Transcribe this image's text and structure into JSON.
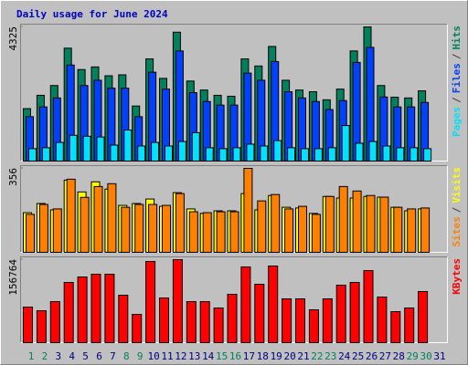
{
  "chart_data": [
    {
      "type": "bar",
      "title": "Daily usage for June 2024",
      "ylim": [
        0,
        4325
      ],
      "yticks": [
        4325
      ],
      "legend_separator": "/",
      "series": [
        {
          "name": "Hits",
          "color": "#00805c",
          "values": [
            1690,
            2120,
            2435,
            3640,
            2950,
            3035,
            2750,
            2780,
            1775,
            3295,
            2665,
            4155,
            2580,
            2290,
            2120,
            2090,
            3295,
            3065,
            3695,
            2605,
            2290,
            2235,
            1975,
            2320,
            3550,
            4325,
            2435,
            2060,
            2035,
            2265,
            null
          ]
        },
        {
          "name": "Files",
          "color": "#0040ff",
          "values": [
            1430,
            1745,
            2035,
            3095,
            2435,
            2605,
            2350,
            2350,
            1430,
            2865,
            2320,
            3550,
            2205,
            1920,
            1805,
            1805,
            2835,
            2605,
            3210,
            2235,
            2035,
            1920,
            1660,
            1950,
            3180,
            3665,
            2065,
            1745,
            1745,
            1890,
            null
          ]
        },
        {
          "name": "Pages",
          "color": "#00e0ff",
          "values": [
            400,
            430,
            600,
            830,
            800,
            775,
            515,
            1000,
            485,
            600,
            485,
            630,
            915,
            430,
            400,
            430,
            545,
            485,
            660,
            430,
            400,
            400,
            430,
            1145,
            575,
            630,
            485,
            430,
            430,
            400,
            null
          ]
        }
      ]
    },
    {
      "type": "bar",
      "ylim": [
        0,
        356
      ],
      "yticks": [
        356
      ],
      "legend_separator": "/",
      "series": [
        {
          "name": "Visits",
          "color": "#ffff00",
          "values": [
            168,
            207,
            180,
            306,
            256,
            299,
            268,
            199,
            207,
            226,
            195,
            253,
            184,
            165,
            176,
            176,
            249,
            180,
            241,
            191,
            188,
            165,
            237,
            230,
            230,
            237,
            234,
            191,
            176,
            184,
            null
          ]
        },
        {
          "name": "Sites",
          "color": "#ff8000",
          "values": [
            161,
            203,
            184,
            310,
            233,
            279,
            291,
            191,
            203,
            203,
            199,
            249,
            172,
            168,
            172,
            172,
            356,
            218,
            245,
            184,
            195,
            161,
            237,
            279,
            260,
            241,
            234,
            191,
            184,
            188,
            null
          ]
        }
      ]
    },
    {
      "type": "bar",
      "ylim": [
        0,
        156764
      ],
      "yticks": [
        156764
      ],
      "categories": [
        "1",
        "2",
        "3",
        "4",
        "5",
        "6",
        "7",
        "8",
        "9",
        "10",
        "11",
        "12",
        "13",
        "14",
        "15",
        "16",
        "17",
        "18",
        "19",
        "20",
        "21",
        "22",
        "23",
        "24",
        "25",
        "26",
        "27",
        "28",
        "29",
        "30",
        "31"
      ],
      "category_colors": [
        "#00805c",
        "#00805c",
        "#000080",
        "#000080",
        "#000080",
        "#000080",
        "#000080",
        "#00805c",
        "#00805c",
        "#000080",
        "#000080",
        "#000080",
        "#000080",
        "#000080",
        "#00805c",
        "#00805c",
        "#000080",
        "#000080",
        "#000080",
        "#000080",
        "#000080",
        "#00805c",
        "#00805c",
        "#000080",
        "#000080",
        "#000080",
        "#000080",
        "#000080",
        "#00805c",
        "#00805c",
        "#000080"
      ],
      "series": [
        {
          "name": "KBytes",
          "color": "#ff0000",
          "values": [
            67185,
            60290,
            77520,
            113700,
            124030,
            129200,
            129200,
            89580,
            53400,
            153320,
            84410,
            156764,
            77520,
            77520,
            65460,
            91300,
            142980,
            110250,
            144700,
            82690,
            82690,
            62015,
            82690,
            108530,
            113700,
            136090,
            86130,
            58570,
            65460,
            96470,
            null
          ]
        }
      ]
    }
  ]
}
